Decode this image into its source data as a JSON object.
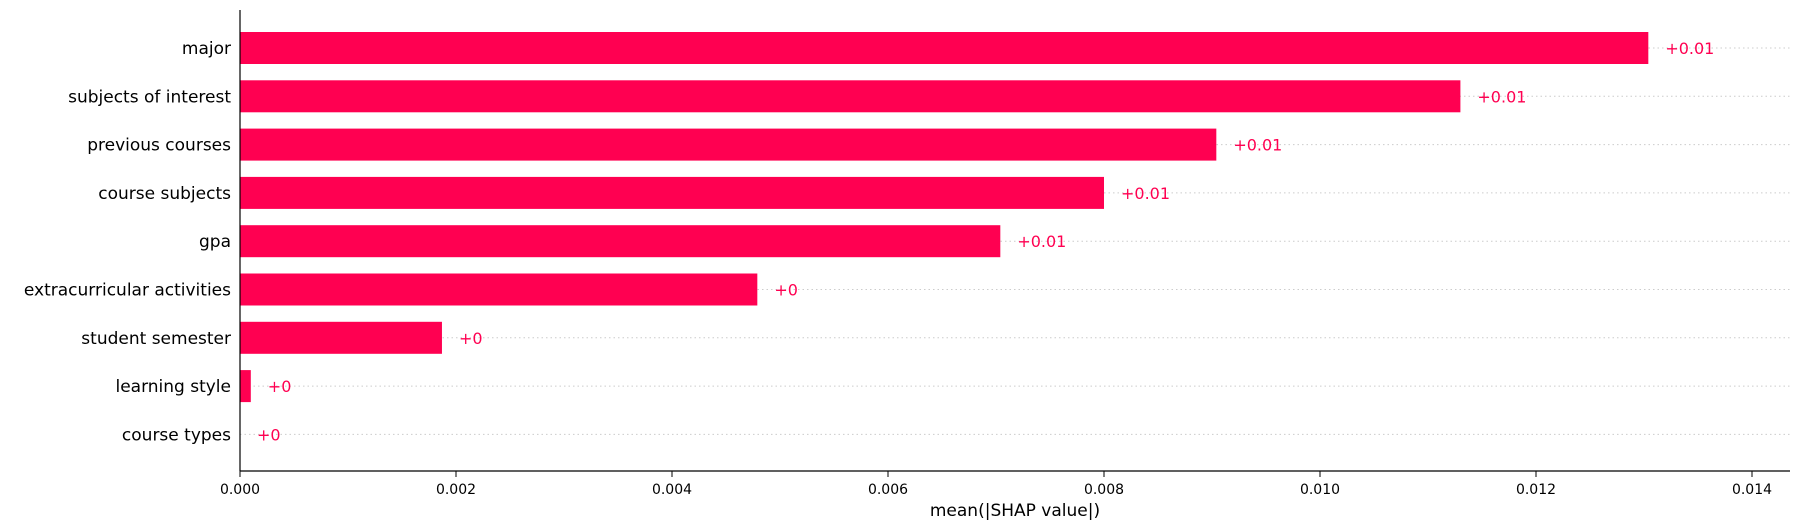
{
  "chart_data": {
    "type": "bar",
    "orientation": "horizontal",
    "categories": [
      "major",
      "subjects of interest",
      "previous courses",
      "course subjects",
      "gpa",
      "extracurricular activities",
      "student semester",
      "learning style",
      "course types"
    ],
    "values": [
      0.01304,
      0.0113,
      0.00904,
      0.008,
      0.00704,
      0.00479,
      0.00187,
      0.0001,
      0.0
    ],
    "value_labels": [
      "+0.01",
      "+0.01",
      "+0.01",
      "+0.01",
      "+0.01",
      "+0",
      "+0",
      "+0",
      "+0"
    ],
    "xlabel": "mean(|SHAP value|)",
    "xlim": [
      0,
      0.0144
    ],
    "xticks": [
      0.0,
      0.002,
      0.004,
      0.006,
      0.008,
      0.01,
      0.012,
      0.014
    ],
    "xtick_labels": [
      "0.000",
      "0.002",
      "0.004",
      "0.006",
      "0.008",
      "0.010",
      "0.012",
      "0.014"
    ],
    "grid": "horizontal dotted row guides",
    "colors": {
      "bar": "#ff0051",
      "label": "#ff0051",
      "grid": "#cccccc",
      "axis": "#000000"
    }
  }
}
